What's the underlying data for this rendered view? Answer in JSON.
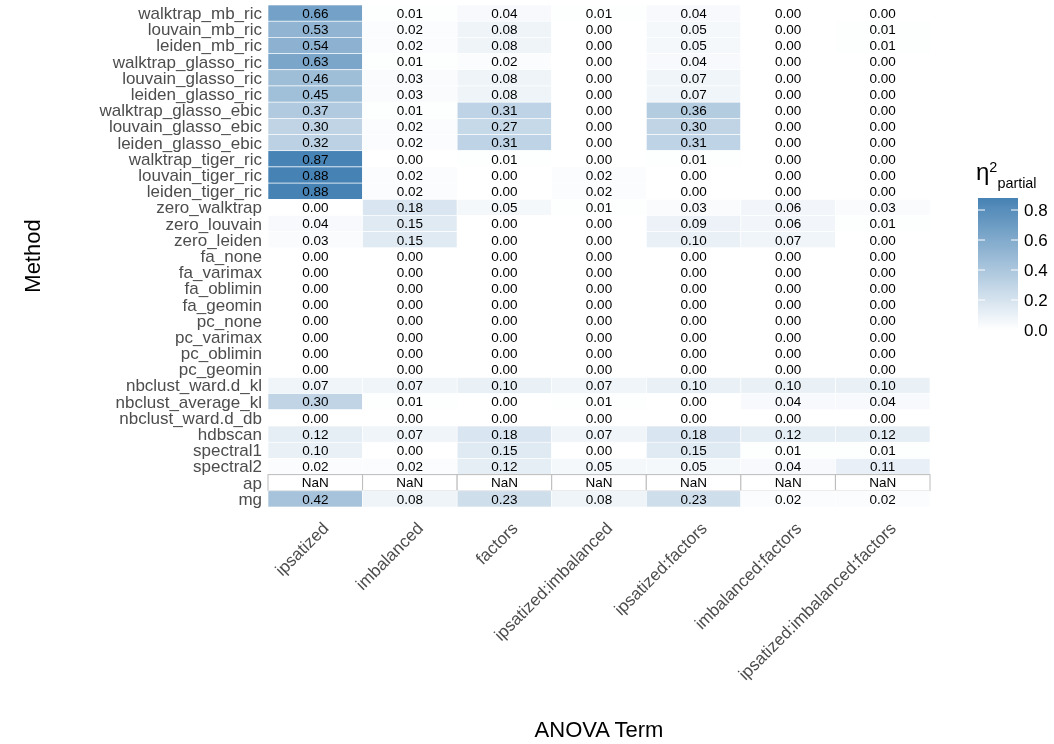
{
  "chart_data": {
    "type": "heatmap",
    "xlabel": "ANOVA Term",
    "ylabel": "Method",
    "legend_title": "η$^{2}$$_{partial}$",
    "categories": [
      "ipsatized",
      "imbalanced",
      "factors",
      "ipsatized:imbalanced",
      "ipsatized:factors",
      "imbalanced:factors",
      "ipsatized:imbalanced:factors"
    ],
    "y_categories": [
      "walktrap_mb_ric",
      "louvain_mb_ric",
      "leiden_mb_ric",
      "walktrap_glasso_ric",
      "louvain_glasso_ric",
      "leiden_glasso_ric",
      "walktrap_glasso_ebic",
      "louvain_glasso_ebic",
      "leiden_glasso_ebic",
      "walktrap_tiger_ric",
      "louvain_tiger_ric",
      "leiden_tiger_ric",
      "zero_walktrap",
      "zero_louvain",
      "zero_leiden",
      "fa_none",
      "fa_varimax",
      "fa_oblimin",
      "fa_geomin",
      "pc_none",
      "pc_varimax",
      "pc_oblimin",
      "pc_geomin",
      "nbclust_ward.d_kl",
      "nbclust_average_kl",
      "nbclust_ward.d_db",
      "hdbscan",
      "spectral1",
      "spectral2",
      "ap",
      "mg"
    ],
    "cells": [
      [
        0.66,
        0.01,
        0.04,
        0.01,
        0.04,
        0,
        0
      ],
      [
        0.53,
        0.02,
        0.08,
        0,
        0.05,
        0,
        0.01
      ],
      [
        0.54,
        0.02,
        0.08,
        0,
        0.05,
        0,
        0.01
      ],
      [
        0.63,
        0.01,
        0.02,
        0,
        0.04,
        0,
        0
      ],
      [
        0.46,
        0.03,
        0.08,
        0,
        0.07,
        0,
        0
      ],
      [
        0.45,
        0.03,
        0.08,
        0,
        0.07,
        0,
        0
      ],
      [
        0.37,
        0.01,
        0.31,
        0,
        0.36,
        0,
        0
      ],
      [
        0.3,
        0.02,
        0.27,
        0,
        0.3,
        0,
        0
      ],
      [
        0.32,
        0.02,
        0.31,
        0,
        0.31,
        0,
        0
      ],
      [
        0.87,
        0,
        0.01,
        0,
        0.01,
        0,
        0
      ],
      [
        0.88,
        0.02,
        0,
        0.02,
        0,
        0,
        0
      ],
      [
        0.88,
        0.02,
        0,
        0.02,
        0,
        0,
        0
      ],
      [
        0,
        0.18,
        0.05,
        0.01,
        0.03,
        0.06,
        0.03
      ],
      [
        0.04,
        0.15,
        0,
        0,
        0.09,
        0.06,
        0.01
      ],
      [
        0.03,
        0.15,
        0,
        0,
        0.1,
        0.07,
        0
      ],
      [
        0,
        0,
        0,
        0,
        0,
        0,
        0
      ],
      [
        0,
        0,
        0,
        0,
        0,
        0,
        0
      ],
      [
        0,
        0,
        0,
        0,
        0,
        0,
        0
      ],
      [
        0,
        0,
        0,
        0,
        0,
        0,
        0
      ],
      [
        0,
        0,
        0,
        0,
        0,
        0,
        0
      ],
      [
        0,
        0,
        0,
        0,
        0,
        0,
        0
      ],
      [
        0,
        0,
        0,
        0,
        0,
        0,
        0
      ],
      [
        0,
        0,
        0,
        0,
        0,
        0,
        0
      ],
      [
        0.07,
        0.07,
        0.1,
        0.07,
        0.1,
        0.1,
        0.1
      ],
      [
        0.3,
        0.01,
        0,
        0.01,
        0,
        0.04,
        0.04
      ],
      [
        0,
        0,
        0,
        0,
        0,
        0,
        0
      ],
      [
        0.12,
        0.07,
        0.18,
        0.07,
        0.18,
        0.12,
        0.12
      ],
      [
        0.1,
        0,
        0.15,
        0,
        0.15,
        0.01,
        0.01
      ],
      [
        0.02,
        0.02,
        0.12,
        0.05,
        0.05,
        0.04,
        0.11
      ],
      [
        null,
        null,
        null,
        null,
        null,
        null,
        null
      ],
      [
        0.42,
        0.08,
        0.23,
        0.08,
        0.23,
        0.02,
        0.02
      ]
    ],
    "cell_labels": [
      [
        "0.66",
        "0.01",
        "0.04",
        "0.01",
        "0.04",
        "0.00",
        "0.00"
      ],
      [
        "0.53",
        "0.02",
        "0.08",
        "0.00",
        "0.05",
        "0.00",
        "0.01"
      ],
      [
        "0.54",
        "0.02",
        "0.08",
        "0.00",
        "0.05",
        "0.00",
        "0.01"
      ],
      [
        "0.63",
        "0.01",
        "0.02",
        "0.00",
        "0.04",
        "0.00",
        "0.00"
      ],
      [
        "0.46",
        "0.03",
        "0.08",
        "0.00",
        "0.07",
        "0.00",
        "0.00"
      ],
      [
        "0.45",
        "0.03",
        "0.08",
        "0.00",
        "0.07",
        "0.00",
        "0.00"
      ],
      [
        "0.37",
        "0.01",
        "0.31",
        "0.00",
        "0.36",
        "0.00",
        "0.00"
      ],
      [
        "0.30",
        "0.02",
        "0.27",
        "0.00",
        "0.30",
        "0.00",
        "0.00"
      ],
      [
        "0.32",
        "0.02",
        "0.31",
        "0.00",
        "0.31",
        "0.00",
        "0.00"
      ],
      [
        "0.87",
        "0.00",
        "0.01",
        "0.00",
        "0.01",
        "0.00",
        "0.00"
      ],
      [
        "0.88",
        "0.02",
        "0.00",
        "0.02",
        "0.00",
        "0.00",
        "0.00"
      ],
      [
        "0.88",
        "0.02",
        "0.00",
        "0.02",
        "0.00",
        "0.00",
        "0.00"
      ],
      [
        "0.00",
        "0.18",
        "0.05",
        "0.01",
        "0.03",
        "0.06",
        "0.03"
      ],
      [
        "0.04",
        "0.15",
        "0.00",
        "0.00",
        "0.09",
        "0.06",
        "0.01"
      ],
      [
        "0.03",
        "0.15",
        "0.00",
        "0.00",
        "0.10",
        "0.07",
        "0.00"
      ],
      [
        "0.00",
        "0.00",
        "0.00",
        "0.00",
        "0.00",
        "0.00",
        "0.00"
      ],
      [
        "0.00",
        "0.00",
        "0.00",
        "0.00",
        "0.00",
        "0.00",
        "0.00"
      ],
      [
        "0.00",
        "0.00",
        "0.00",
        "0.00",
        "0.00",
        "0.00",
        "0.00"
      ],
      [
        "0.00",
        "0.00",
        "0.00",
        "0.00",
        "0.00",
        "0.00",
        "0.00"
      ],
      [
        "0.00",
        "0.00",
        "0.00",
        "0.00",
        "0.00",
        "0.00",
        "0.00"
      ],
      [
        "0.00",
        "0.00",
        "0.00",
        "0.00",
        "0.00",
        "0.00",
        "0.00"
      ],
      [
        "0.00",
        "0.00",
        "0.00",
        "0.00",
        "0.00",
        "0.00",
        "0.00"
      ],
      [
        "0.00",
        "0.00",
        "0.00",
        "0.00",
        "0.00",
        "0.00",
        "0.00"
      ],
      [
        "0.07",
        "0.07",
        "0.10",
        "0.07",
        "0.10",
        "0.10",
        "0.10"
      ],
      [
        "0.30",
        "0.01",
        "0.00",
        "0.01",
        "0.00",
        "0.04",
        "0.04"
      ],
      [
        "0.00",
        "0.00",
        "0.00",
        "0.00",
        "0.00",
        "0.00",
        "0.00"
      ],
      [
        "0.12",
        "0.07",
        "0.18",
        "0.07",
        "0.18",
        "0.12",
        "0.12"
      ],
      [
        "0.10",
        "0.00",
        "0.15",
        "0.00",
        "0.15",
        "0.01",
        "0.01"
      ],
      [
        "0.02",
        "0.02",
        "0.12",
        "0.05",
        "0.05",
        "0.04",
        "0.11"
      ],
      [
        "NaN",
        "NaN",
        "NaN",
        "NaN",
        "NaN",
        "NaN",
        "NaN"
      ],
      [
        "0.42",
        "0.08",
        "0.23",
        "0.08",
        "0.23",
        "0.02",
        "0.02"
      ]
    ],
    "clim": [
      0,
      0.88
    ],
    "cticks": [
      {
        "value": 0,
        "label": "0.0"
      },
      {
        "value": 0.2,
        "label": "0.2"
      },
      {
        "value": 0.4,
        "label": "0.4"
      },
      {
        "value": 0.6,
        "label": "0.6"
      },
      {
        "value": 0.8,
        "label": "0.8"
      }
    ]
  }
}
